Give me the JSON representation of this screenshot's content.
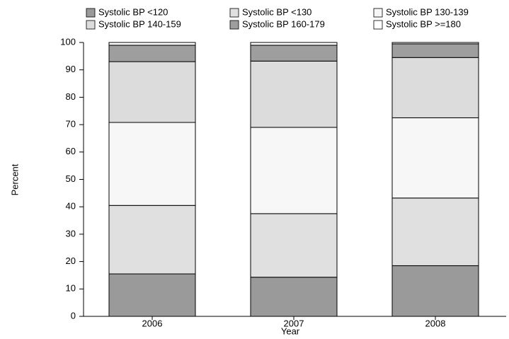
{
  "chart_data": {
    "type": "stacked_bar",
    "x_label": "Year",
    "y_label": "Percent",
    "categories": [
      "2006",
      "2007",
      "2008"
    ],
    "series": [
      {
        "name": "Systolic BP <120",
        "color": "#9a9a9a",
        "values": [
          15.5,
          14.3,
          18.5
        ]
      },
      {
        "name": "Systolic BP <130",
        "color": "#e0e0e0",
        "values": [
          25,
          23.2,
          24.7
        ]
      },
      {
        "name": "Systolic BP 130-139",
        "color": "#f7f7f7",
        "values": [
          30.3,
          31.5,
          29.3
        ]
      },
      {
        "name": "Systolic BP 140-159",
        "color": "#dcdcdc",
        "values": [
          22.2,
          24.2,
          22
        ]
      },
      {
        "name": "Systolic BP 160-179",
        "color": "#9e9e9e",
        "values": [
          6,
          5.8,
          5
        ]
      },
      {
        "name": "Systolic BP >=180",
        "color": "#ffffff",
        "values": [
          1,
          1,
          0.5
        ]
      }
    ],
    "ylim": [
      0,
      100
    ],
    "yticks": [
      0,
      10,
      20,
      30,
      40,
      50,
      60,
      70,
      80,
      90,
      100
    ],
    "grid": false
  }
}
